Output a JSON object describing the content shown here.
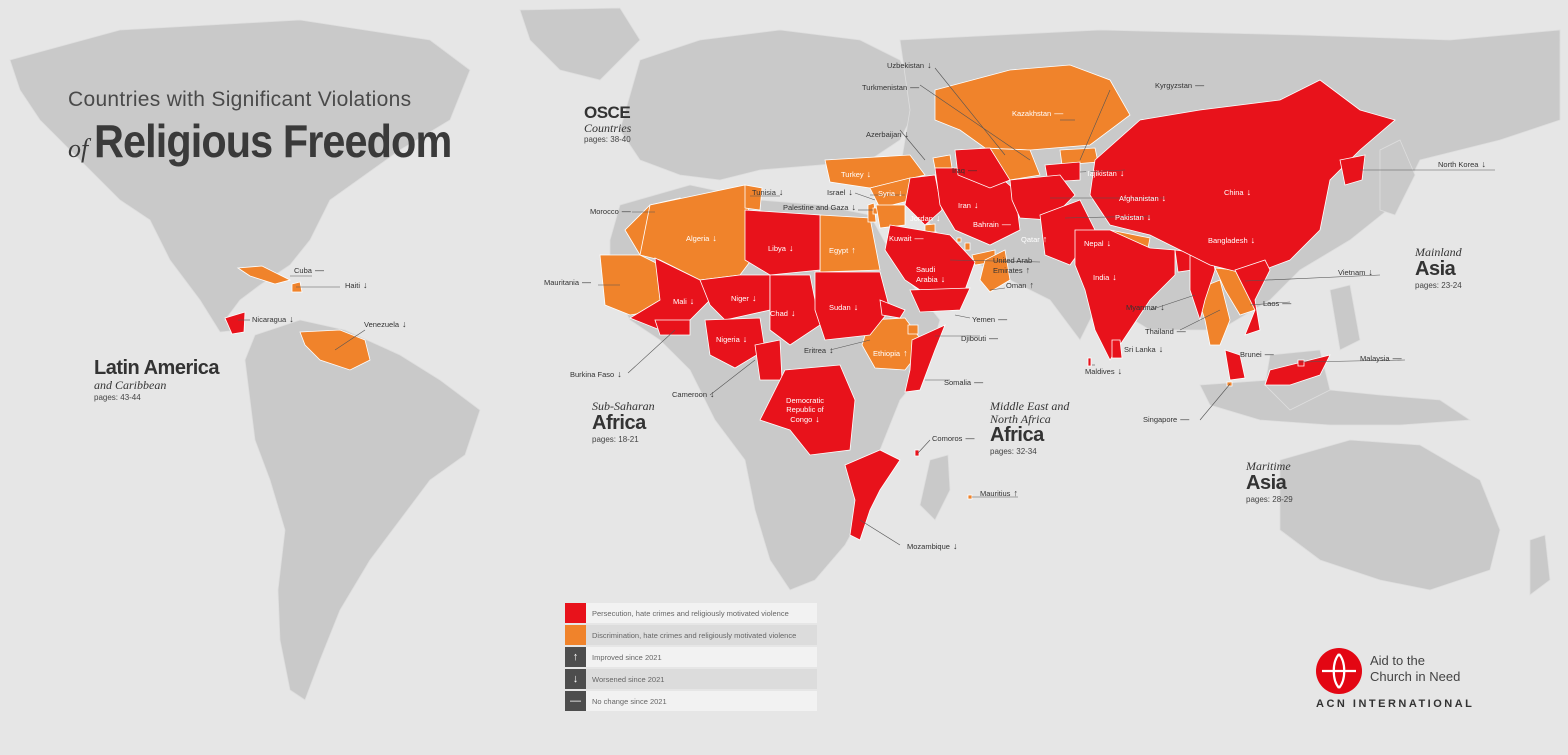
{
  "title": {
    "line1": "Countries with Significant Violations",
    "of": "of",
    "line2": "Religious Freedom"
  },
  "colors": {
    "persecution": "#e8121b",
    "discrimination": "#f0832b",
    "land": "#c9c9c9",
    "ocean": "#e6e6e6",
    "marker": "#4d4d4d"
  },
  "regions": {
    "latin_america": {
      "big": "Latin America",
      "sub": "and Caribbean",
      "pages": "pages: 43-44"
    },
    "osce": {
      "big": "OSCE",
      "sub": "Countries",
      "pages": "pages: 38-40"
    },
    "ssa": {
      "sub": "Sub-Saharan",
      "big": "Africa",
      "pages": "pages: 18-21"
    },
    "mena": {
      "sub": "Middle East and North Africa",
      "big": "Africa",
      "pages": "pages: 32-34"
    },
    "mainland_asia": {
      "sub": "Mainland",
      "big": "Asia",
      "pages": "pages: 23-24"
    },
    "maritime_asia": {
      "sub": "Maritime",
      "big": "Asia",
      "pages": "pages: 28-29"
    }
  },
  "countries": [
    {
      "name": "Cuba",
      "status": "discrimination",
      "trend": "—"
    },
    {
      "name": "Haiti",
      "status": "discrimination",
      "trend": "↓"
    },
    {
      "name": "Nicaragua",
      "status": "persecution",
      "trend": "↓"
    },
    {
      "name": "Venezuela",
      "status": "discrimination",
      "trend": "↓"
    },
    {
      "name": "Morocco",
      "status": "discrimination",
      "trend": "—"
    },
    {
      "name": "Mauritania",
      "status": "discrimination",
      "trend": "—"
    },
    {
      "name": "Algeria",
      "status": "discrimination",
      "trend": "↓"
    },
    {
      "name": "Tunisia",
      "status": "discrimination",
      "trend": "↓"
    },
    {
      "name": "Libya",
      "status": "persecution",
      "trend": "↓"
    },
    {
      "name": "Egypt",
      "status": "discrimination",
      "trend": "↑"
    },
    {
      "name": "Mali",
      "status": "persecution",
      "trend": "↓"
    },
    {
      "name": "Niger",
      "status": "persecution",
      "trend": "↓"
    },
    {
      "name": "Chad",
      "status": "persecution",
      "trend": "↓"
    },
    {
      "name": "Sudan",
      "status": "persecution",
      "trend": "↓"
    },
    {
      "name": "Nigeria",
      "status": "persecution",
      "trend": "↓"
    },
    {
      "name": "Burkina Faso",
      "status": "persecution",
      "trend": "↓"
    },
    {
      "name": "Cameroon",
      "status": "persecution",
      "trend": "↓"
    },
    {
      "name": "Eritrea",
      "status": "persecution",
      "trend": "↓"
    },
    {
      "name": "Ethiopia",
      "status": "discrimination",
      "trend": "↑"
    },
    {
      "name": "Somalia",
      "status": "persecution",
      "trend": "—"
    },
    {
      "name": "Djibouti",
      "status": "discrimination",
      "trend": "—"
    },
    {
      "name": "Democratic Republic of Congo",
      "status": "persecution",
      "trend": "↓"
    },
    {
      "name": "Mozambique",
      "status": "persecution",
      "trend": "↓"
    },
    {
      "name": "Comoros",
      "status": "persecution",
      "trend": "—"
    },
    {
      "name": "Mauritius",
      "status": "discrimination",
      "trend": "↑"
    },
    {
      "name": "Turkey",
      "status": "discrimination",
      "trend": "↓"
    },
    {
      "name": "Syria",
      "status": "discrimination",
      "trend": "↓"
    },
    {
      "name": "Israel",
      "status": "discrimination",
      "trend": "↓"
    },
    {
      "name": "Palestine and Gaza",
      "status": "discrimination",
      "trend": "↓"
    },
    {
      "name": "Jordan",
      "status": "discrimination",
      "trend": "↓"
    },
    {
      "name": "Kuwait",
      "status": "discrimination",
      "trend": "—"
    },
    {
      "name": "Iraq",
      "status": "persecution",
      "trend": "—"
    },
    {
      "name": "Iran",
      "status": "persecution",
      "trend": "↓"
    },
    {
      "name": "Bahrain",
      "status": "discrimination",
      "trend": "—"
    },
    {
      "name": "Qatar",
      "status": "discrimination",
      "trend": "↑"
    },
    {
      "name": "Saudi Arabia",
      "status": "persecution",
      "trend": "↓"
    },
    {
      "name": "United Arab Emirates",
      "status": "discrimination",
      "trend": "↑"
    },
    {
      "name": "Oman",
      "status": "discrimination",
      "trend": "↑"
    },
    {
      "name": "Yemen",
      "status": "persecution",
      "trend": "—"
    },
    {
      "name": "Azerbaijan",
      "status": "discrimination",
      "trend": "↓"
    },
    {
      "name": "Turkmenistan",
      "status": "persecution",
      "trend": "—"
    },
    {
      "name": "Uzbekistan",
      "status": "discrimination",
      "trend": "↓"
    },
    {
      "name": "Kazakhstan",
      "status": "discrimination",
      "trend": "—"
    },
    {
      "name": "Kyrgyzstan",
      "status": "discrimination",
      "trend": "—"
    },
    {
      "name": "Tajikistan",
      "status": "persecution",
      "trend": "↓"
    },
    {
      "name": "Afghanistan",
      "status": "persecution",
      "trend": "↓"
    },
    {
      "name": "Pakistan",
      "status": "persecution",
      "trend": "↓"
    },
    {
      "name": "India",
      "status": "persecution",
      "trend": "↓"
    },
    {
      "name": "Nepal",
      "status": "discrimination",
      "trend": "↓"
    },
    {
      "name": "Bangladesh",
      "status": "persecution",
      "trend": "↓"
    },
    {
      "name": "Sri Lanka",
      "status": "persecution",
      "trend": "↓"
    },
    {
      "name": "Maldives",
      "status": "persecution",
      "trend": "↓"
    },
    {
      "name": "China",
      "status": "persecution",
      "trend": "↓"
    },
    {
      "name": "North Korea",
      "status": "persecution",
      "trend": "↓"
    },
    {
      "name": "Myanmar",
      "status": "persecution",
      "trend": "↓"
    },
    {
      "name": "Thailand",
      "status": "discrimination",
      "trend": "—"
    },
    {
      "name": "Laos",
      "status": "discrimination",
      "trend": "—"
    },
    {
      "name": "Vietnam",
      "status": "persecution",
      "trend": "↓"
    },
    {
      "name": "Malaysia",
      "status": "persecution",
      "trend": "—"
    },
    {
      "name": "Brunei",
      "status": "persecution",
      "trend": "—"
    },
    {
      "name": "Singapore",
      "status": "discrimination",
      "trend": "—"
    }
  ],
  "legend": [
    {
      "label": "Persecution, hate crimes and religiously motivated violence",
      "symbol": "",
      "color": "#e8121b"
    },
    {
      "label": "Discrimination, hate crimes and religiously motivated violence",
      "symbol": "",
      "color": "#f0832b"
    },
    {
      "label": "Improved since 2021",
      "symbol": "↑",
      "color": "#4d4d4d"
    },
    {
      "label": "Worsened since 2021",
      "symbol": "↓",
      "color": "#4d4d4d"
    },
    {
      "label": "No change since 2021",
      "symbol": "—",
      "color": "#4d4d4d"
    }
  ],
  "logo": {
    "line1": "Aid to the",
    "line2": "Church in Need",
    "org": "ACN INTERNATIONAL"
  }
}
